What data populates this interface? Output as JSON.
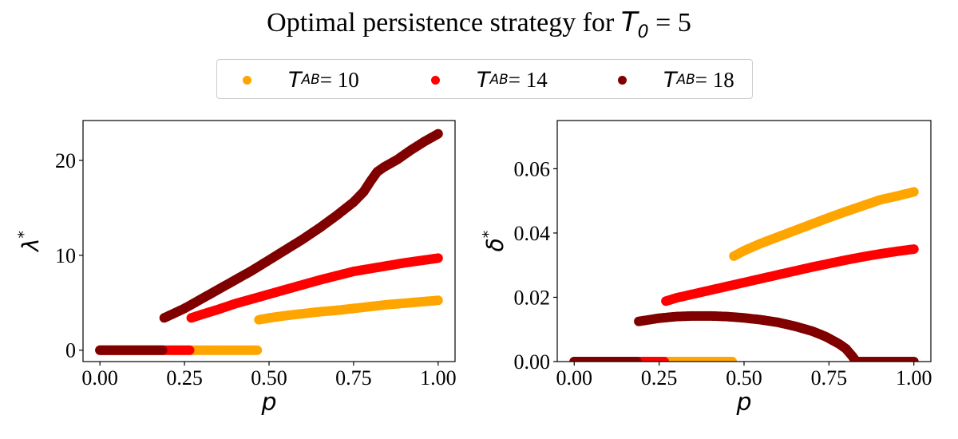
{
  "title": {
    "prefix": "Optimal persistence strategy for ",
    "var": "T",
    "sub": "0",
    "suffix": " = 5"
  },
  "legend": {
    "items": [
      {
        "var": "T",
        "sub": "AB",
        "value_text": " = 10",
        "color": "#FFA500"
      },
      {
        "var": "T",
        "sub": "AB",
        "value_text": " = 14",
        "color": "#FF0000"
      },
      {
        "var": "T",
        "sub": "AB",
        "value_text": " = 18",
        "color": "#800000"
      }
    ]
  },
  "chart_data": [
    {
      "type": "scatter",
      "xlabel": "p",
      "ylabel": "λ*",
      "xlim": [
        -0.05,
        1.05
      ],
      "ylim": [
        -1.2,
        24.2
      ],
      "xticks": [
        0.0,
        0.25,
        0.5,
        0.75,
        1.0
      ],
      "xtick_labels": [
        "0.00",
        "0.25",
        "0.50",
        "0.75",
        "1.00"
      ],
      "yticks": [
        0,
        10,
        20
      ],
      "ytick_labels": [
        "0",
        "10",
        "20"
      ],
      "grid": false,
      "series": [
        {
          "name": "T_AB = 10",
          "color": "#FFA500",
          "points": [
            [
              0.0,
              0
            ],
            [
              0.05,
              0
            ],
            [
              0.1,
              0
            ],
            [
              0.15,
              0
            ],
            [
              0.2,
              0
            ],
            [
              0.25,
              0
            ],
            [
              0.3,
              0
            ],
            [
              0.35,
              0
            ],
            [
              0.4,
              0
            ],
            [
              0.47,
              0
            ],
            [
              0.47,
              3.2
            ],
            [
              0.5,
              3.4
            ],
            [
              0.55,
              3.65
            ],
            [
              0.6,
              3.85
            ],
            [
              0.65,
              4.05
            ],
            [
              0.7,
              4.2
            ],
            [
              0.75,
              4.4
            ],
            [
              0.8,
              4.6
            ],
            [
              0.85,
              4.8
            ],
            [
              0.9,
              4.95
            ],
            [
              0.95,
              5.1
            ],
            [
              1.0,
              5.25
            ]
          ]
        },
        {
          "name": "T_AB = 14",
          "color": "#FF0000",
          "points": [
            [
              0.0,
              0
            ],
            [
              0.05,
              0
            ],
            [
              0.1,
              0
            ],
            [
              0.15,
              0
            ],
            [
              0.2,
              0
            ],
            [
              0.27,
              0
            ],
            [
              0.27,
              3.4
            ],
            [
              0.3,
              3.75
            ],
            [
              0.35,
              4.3
            ],
            [
              0.4,
              4.9
            ],
            [
              0.45,
              5.4
            ],
            [
              0.5,
              5.9
            ],
            [
              0.55,
              6.4
            ],
            [
              0.6,
              6.9
            ],
            [
              0.65,
              7.4
            ],
            [
              0.7,
              7.85
            ],
            [
              0.75,
              8.3
            ],
            [
              0.8,
              8.6
            ],
            [
              0.85,
              8.9
            ],
            [
              0.9,
              9.2
            ],
            [
              0.95,
              9.45
            ],
            [
              1.0,
              9.7
            ]
          ]
        },
        {
          "name": "T_AB = 18",
          "color": "#800000",
          "points": [
            [
              0.0,
              0
            ],
            [
              0.05,
              0
            ],
            [
              0.1,
              0
            ],
            [
              0.15,
              0
            ],
            [
              0.19,
              0
            ],
            [
              0.19,
              3.4
            ],
            [
              0.25,
              4.4
            ],
            [
              0.3,
              5.4
            ],
            [
              0.35,
              6.4
            ],
            [
              0.4,
              7.4
            ],
            [
              0.45,
              8.4
            ],
            [
              0.5,
              9.5
            ],
            [
              0.55,
              10.6
            ],
            [
              0.6,
              11.7
            ],
            [
              0.65,
              12.9
            ],
            [
              0.7,
              14.2
            ],
            [
              0.75,
              15.6
            ],
            [
              0.78,
              16.7
            ],
            [
              0.8,
              17.8
            ],
            [
              0.82,
              18.8
            ],
            [
              0.84,
              19.3
            ],
            [
              0.88,
              20.1
            ],
            [
              0.92,
              21.1
            ],
            [
              0.96,
              22.0
            ],
            [
              1.0,
              22.8
            ]
          ]
        }
      ]
    },
    {
      "type": "scatter",
      "xlabel": "p",
      "ylabel": "δ*",
      "xlim": [
        -0.05,
        1.05
      ],
      "ylim": [
        0.0,
        0.075
      ],
      "xticks": [
        0.0,
        0.25,
        0.5,
        0.75,
        1.0
      ],
      "xtick_labels": [
        "0.00",
        "0.25",
        "0.50",
        "0.75",
        "1.00"
      ],
      "yticks": [
        0.0,
        0.02,
        0.04,
        0.06
      ],
      "ytick_labels": [
        "0.00",
        "0.02",
        "0.04",
        "0.06"
      ],
      "grid": false,
      "series": [
        {
          "name": "T_AB = 10",
          "color": "#FFA500",
          "points": [
            [
              0.0,
              0
            ],
            [
              0.1,
              0
            ],
            [
              0.2,
              0
            ],
            [
              0.3,
              0
            ],
            [
              0.4,
              0
            ],
            [
              0.47,
              0
            ],
            [
              0.47,
              0.0328
            ],
            [
              0.5,
              0.0345
            ],
            [
              0.55,
              0.0368
            ],
            [
              0.6,
              0.0388
            ],
            [
              0.65,
              0.0408
            ],
            [
              0.7,
              0.0428
            ],
            [
              0.75,
              0.0448
            ],
            [
              0.8,
              0.0467
            ],
            [
              0.85,
              0.0485
            ],
            [
              0.9,
              0.0503
            ],
            [
              0.95,
              0.0515
            ],
            [
              1.0,
              0.0528
            ]
          ]
        },
        {
          "name": "T_AB = 14",
          "color": "#FF0000",
          "points": [
            [
              0.0,
              0
            ],
            [
              0.1,
              0
            ],
            [
              0.2,
              0
            ],
            [
              0.27,
              0
            ],
            [
              0.27,
              0.0188
            ],
            [
              0.3,
              0.0198
            ],
            [
              0.35,
              0.021
            ],
            [
              0.4,
              0.0222
            ],
            [
              0.45,
              0.0234
            ],
            [
              0.5,
              0.0246
            ],
            [
              0.55,
              0.0258
            ],
            [
              0.6,
              0.027
            ],
            [
              0.65,
              0.0282
            ],
            [
              0.7,
              0.0294
            ],
            [
              0.75,
              0.0305
            ],
            [
              0.8,
              0.0316
            ],
            [
              0.85,
              0.0326
            ],
            [
              0.9,
              0.0335
            ],
            [
              0.95,
              0.0343
            ],
            [
              1.0,
              0.035
            ]
          ]
        },
        {
          "name": "T_AB = 18",
          "color": "#800000",
          "points": [
            [
              0.0,
              0
            ],
            [
              0.1,
              0
            ],
            [
              0.19,
              0
            ],
            [
              0.19,
              0.0125
            ],
            [
              0.25,
              0.0135
            ],
            [
              0.3,
              0.014
            ],
            [
              0.35,
              0.0142
            ],
            [
              0.4,
              0.0142
            ],
            [
              0.45,
              0.014
            ],
            [
              0.5,
              0.0136
            ],
            [
              0.55,
              0.013
            ],
            [
              0.6,
              0.0122
            ],
            [
              0.65,
              0.011
            ],
            [
              0.7,
              0.0095
            ],
            [
              0.74,
              0.0078
            ],
            [
              0.78,
              0.0055
            ],
            [
              0.8,
              0.004
            ],
            [
              0.82,
              0.0015
            ],
            [
              0.83,
              0.0
            ],
            [
              0.85,
              0
            ],
            [
              0.9,
              0
            ],
            [
              0.95,
              0
            ],
            [
              1.0,
              0
            ]
          ]
        }
      ]
    }
  ]
}
